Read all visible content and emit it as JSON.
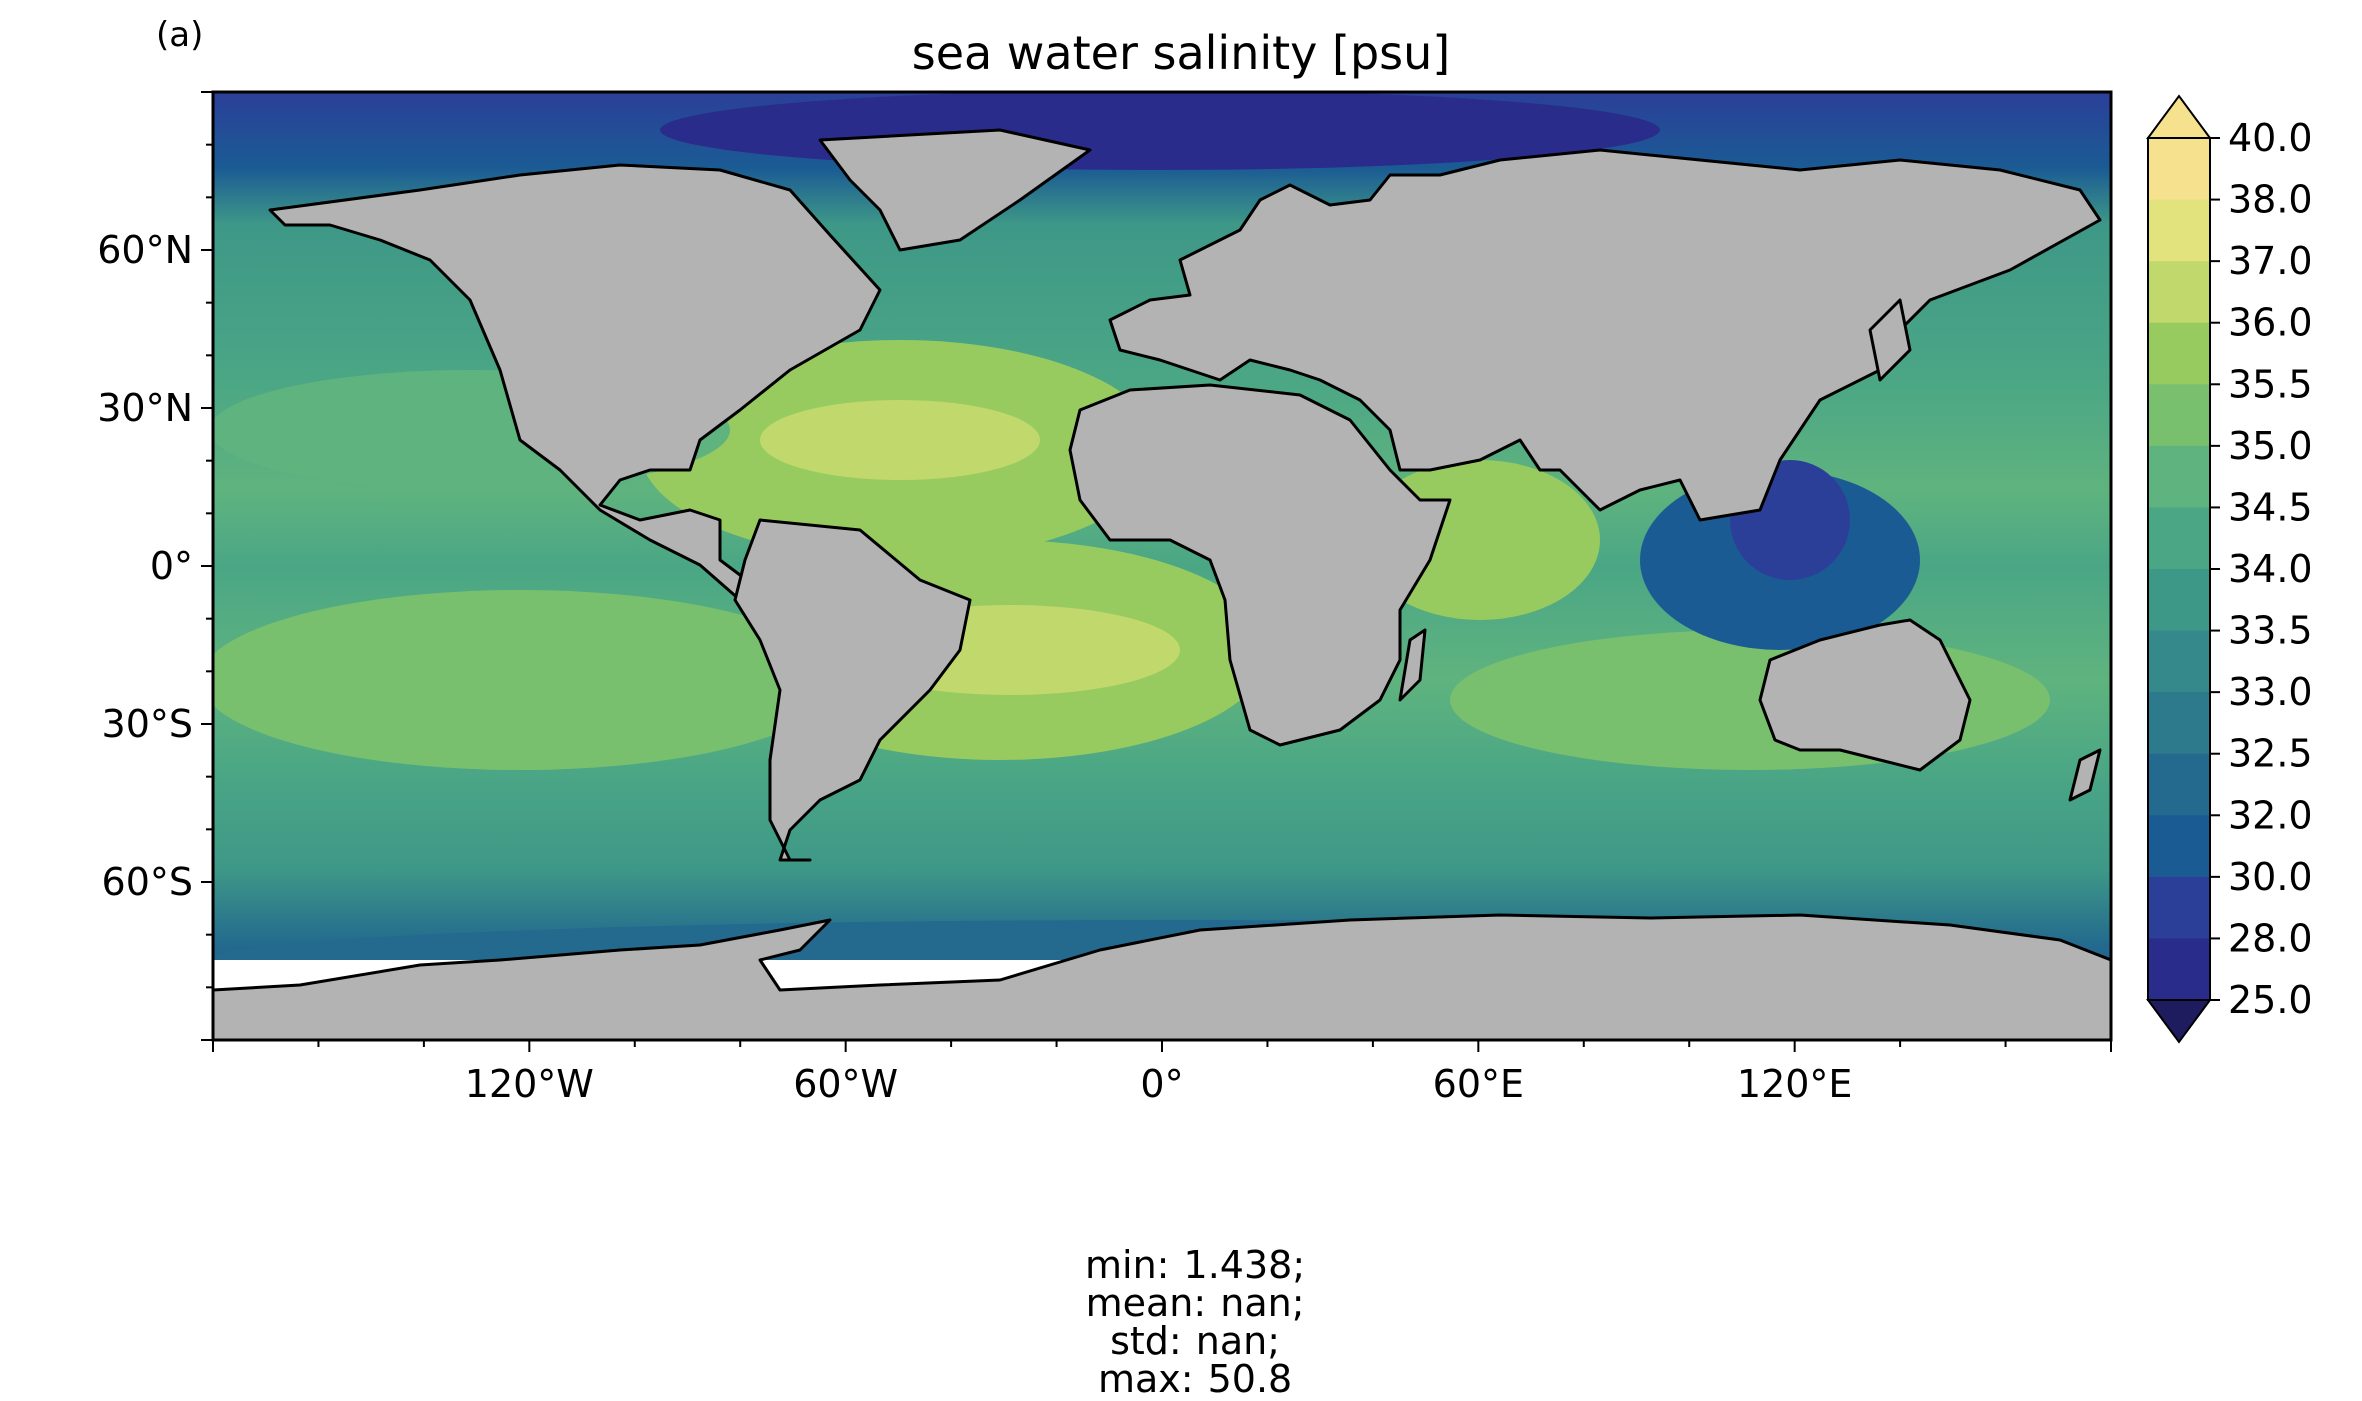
{
  "panel_label": "(a)",
  "title": "sea water salinity [psu]",
  "colors": {
    "land": "#b3b3b3",
    "nodata": "#ffffff",
    "coast": "#000000",
    "levels": [
      "#1e1b5e",
      "#2a2c8c",
      "#2b3f99",
      "#1b5b94",
      "#236a8e",
      "#2c7a8c",
      "#35898a",
      "#3e9887",
      "#4aa685",
      "#5fb37e",
      "#78c06e",
      "#98cb5f",
      "#c1d86c",
      "#e3e37d",
      "#f6e28e"
    ]
  },
  "map": {
    "projection": "PlateCarree",
    "lon_ticks": [
      "120°W",
      "60°W",
      "0°",
      "60°E",
      "120°E"
    ],
    "lat_ticks": [
      "60°N",
      "30°N",
      "0°",
      "30°S",
      "60°S"
    ]
  },
  "colorbar": {
    "labels": [
      "40.0",
      "38.0",
      "37.0",
      "36.0",
      "35.5",
      "35.0",
      "34.5",
      "34.0",
      "33.5",
      "33.0",
      "32.5",
      "32.0",
      "30.0",
      "28.0",
      "25.0"
    ],
    "extend": "both"
  },
  "stats": {
    "min": "min: 1.438;",
    "mean": "mean: nan;",
    "std": "std: nan;",
    "max": "max: 50.8"
  }
}
